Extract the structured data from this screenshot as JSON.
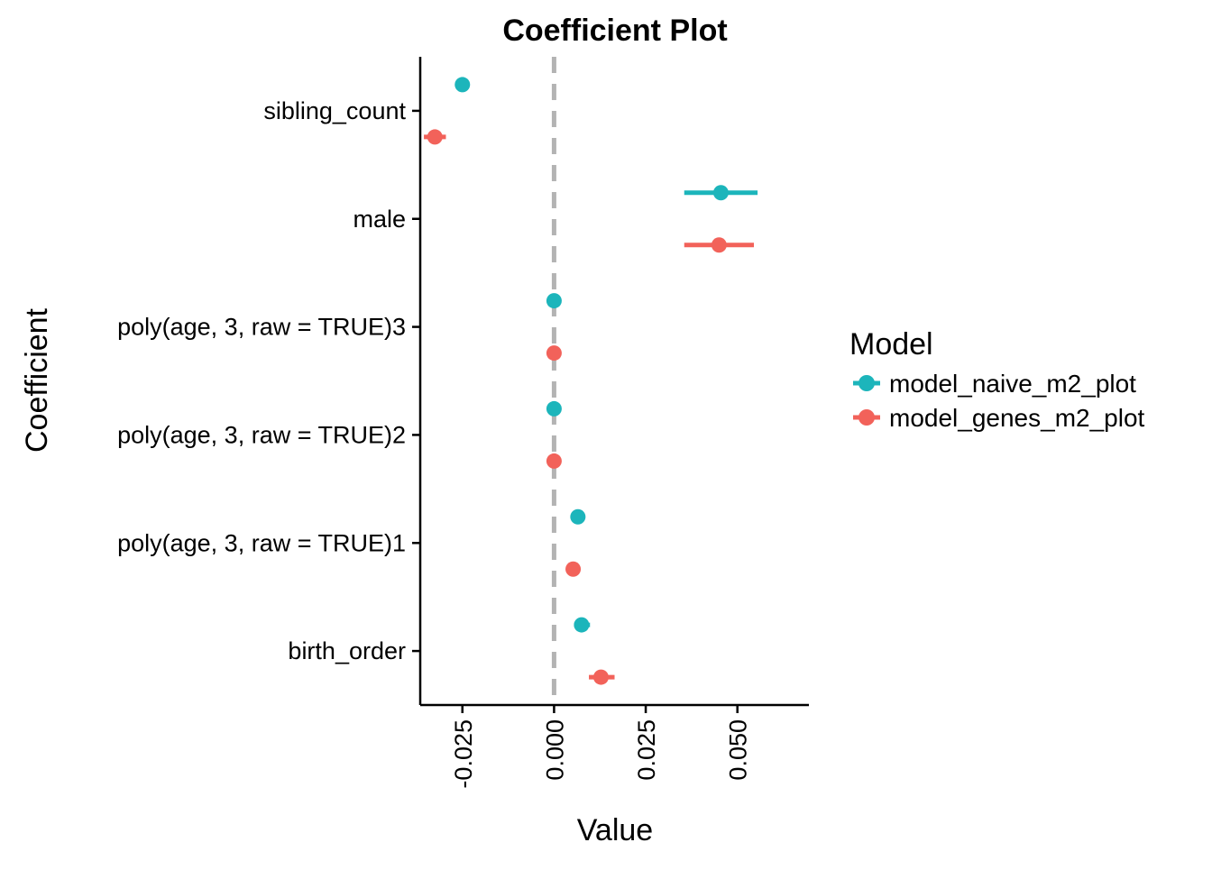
{
  "chart_data": {
    "type": "scatter",
    "title": "Coefficient Plot",
    "xlabel": "Value",
    "ylabel": "Coefficient",
    "xlim": [
      -0.0365,
      0.0695
    ],
    "x_ticks": [
      -0.025,
      0.0,
      0.025,
      0.05
    ],
    "x_tick_labels": [
      "-0.025",
      "0.000",
      "0.025",
      "0.050"
    ],
    "categories": [
      "sibling_count",
      "male",
      "poly(age, 3, raw = TRUE)3",
      "poly(age, 3, raw = TRUE)2",
      "poly(age, 3, raw = TRUE)1",
      "birth_order"
    ],
    "reference_line": {
      "x": 0,
      "style": "dashed",
      "color": "#b3b3b3"
    },
    "grid": false,
    "legend": {
      "title": "Model",
      "position": "right"
    },
    "series": [
      {
        "name": "model_naive_m2_plot",
        "color": "#1cb5bb",
        "estimates": [
          -0.025,
          0.0455,
          0.0,
          0.0,
          0.0065,
          0.0075
        ],
        "ci_low": [
          -0.0263,
          0.0355,
          -0.0002,
          -0.0002,
          0.0055,
          0.0055
        ],
        "ci_high": [
          -0.0237,
          0.0555,
          0.0002,
          0.0002,
          0.0075,
          0.0098
        ]
      },
      {
        "name": "model_genes_m2_plot",
        "color": "#f2625a",
        "estimates": [
          -0.0325,
          0.045,
          0.0,
          0.0,
          0.0052,
          0.0128
        ],
        "ci_low": [
          -0.0355,
          0.0355,
          -0.0002,
          -0.0002,
          0.0042,
          0.0095
        ],
        "ci_high": [
          -0.0295,
          0.0545,
          0.0002,
          0.0002,
          0.0062,
          0.0165
        ]
      }
    ]
  }
}
